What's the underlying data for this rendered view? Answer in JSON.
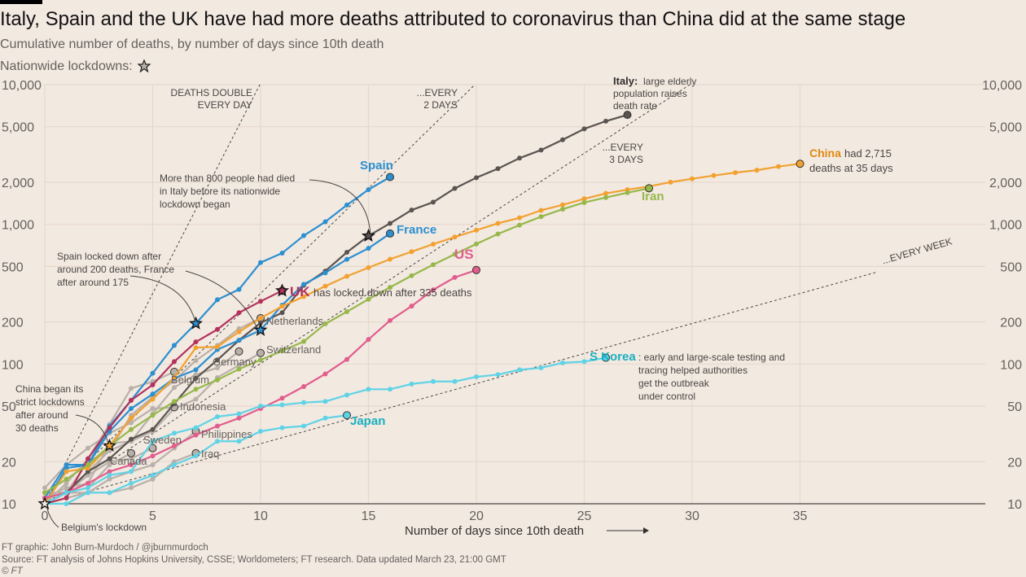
{
  "title": "Italy, Spain and the UK have had more deaths attributed to coronavirus than China did at the same stage",
  "subtitle": "Cumulative number of deaths, by number of days since 10th death",
  "legend_label": "Nationwide lockdowns:",
  "footer": {
    "credit": "FT graphic: John Burn-Murdoch / @jburnmurdoch",
    "source": "Source: FT analysis of Johns Hopkins University, CSSE; Worldometers; FT research. Data updated March 23, 21:00 GMT",
    "copyright": "© FT"
  },
  "chart_data": {
    "type": "line",
    "title": "Italy, Spain and the UK have had more deaths attributed to coronavirus than China did at the same stage",
    "xlabel": "Number of days since 10th death",
    "ylabel": "Cumulative number of deaths",
    "yscale": "log",
    "xlim": [
      0,
      37
    ],
    "ylim": [
      10,
      10000
    ],
    "xticks": [
      0,
      5,
      10,
      15,
      20,
      25,
      30,
      35
    ],
    "yticks": [
      10,
      20,
      50,
      100,
      200,
      500,
      1000,
      2000,
      5000,
      10000
    ],
    "ytick_labels": [
      "10",
      "20",
      "50",
      "100",
      "200",
      "500",
      "1,000",
      "2,000",
      "5,000",
      "10,000"
    ],
    "grid": true,
    "guides": [
      {
        "label": "DEATHS DOUBLE EVERY DAY",
        "doubling_days": 1
      },
      {
        "label": "...EVERY 2 DAYS",
        "doubling_days": 2
      },
      {
        "label": "...EVERY 3 DAYS",
        "doubling_days": 3
      },
      {
        "label": "...EVERY WEEK",
        "doubling_days": 7
      }
    ],
    "series": [
      {
        "name": "Italy",
        "color": "#5a5350",
        "highlight": true,
        "values": [
          10,
          12,
          17,
          21,
          29,
          34,
          52,
          79,
          107,
          148,
          197,
          233,
          366,
          463,
          631,
          827,
          1016,
          1266,
          1441,
          1809,
          2158,
          2503,
          2978,
          3405,
          4032,
          4825,
          5476,
          6077
        ],
        "lockdown_day": 15
      },
      {
        "name": "Spain",
        "color": "#2b8fd0",
        "highlight": true,
        "values": [
          10,
          18,
          19,
          36,
          55,
          86,
          136,
          195,
          289,
          342,
          533,
          623,
          830,
          1043,
          1375,
          1772,
          2182
        ],
        "lockdown_day": 7
      },
      {
        "name": "France",
        "color": "#2b8fd0",
        "highlight": true,
        "values": [
          11,
          19,
          19,
          33,
          48,
          61,
          79,
          91,
          127,
          148,
          175,
          264,
          372,
          450,
          562,
          674,
          860
        ],
        "lockdown_day": 10
      },
      {
        "name": "UK",
        "color": "#b3325c",
        "highlight": true,
        "values": [
          10,
          11,
          21,
          35,
          55,
          71,
          104,
          144,
          177,
          233,
          281,
          335
        ],
        "lockdown_day": 11
      },
      {
        "name": "China",
        "color": "#f2a130",
        "highlight": true,
        "values": [
          10,
          17,
          18,
          26,
          41,
          56,
          80,
          131,
          133,
          170,
          213,
          259,
          304,
          361,
          425,
          490,
          563,
          637,
          722,
          811,
          908,
          1016,
          1113,
          1259,
          1380,
          1523,
          1665,
          1770,
          1868,
          2004,
          2118,
          2236,
          2345,
          2442,
          2592,
          2715
        ],
        "lockdown_day": 3
      },
      {
        "name": "Iran",
        "color": "#96b84a",
        "highlight": true,
        "values": [
          12,
          15,
          19,
          26,
          34,
          43,
          54,
          66,
          77,
          92,
          107,
          124,
          145,
          194,
          237,
          291,
          354,
          429,
          514,
          611,
          724,
          853,
          988,
          1135,
          1284,
          1433,
          1556,
          1685,
          1812
        ]
      },
      {
        "name": "US",
        "color": "#e15d8c",
        "highlight": true,
        "values": [
          11,
          12,
          14,
          17,
          19,
          22,
          26,
          31,
          36,
          41,
          48,
          57,
          69,
          85,
          108,
          150,
          205,
          260,
          340,
          417,
          471
        ]
      },
      {
        "name": "S Korea",
        "color": "#5fd3e6",
        "highlight": true,
        "values": [
          10,
          12,
          13,
          16,
          17,
          28,
          32,
          35,
          42,
          44,
          50,
          51,
          53,
          54,
          60,
          66,
          66,
          72,
          75,
          75,
          81,
          84,
          91,
          94,
          102,
          104,
          111
        ]
      },
      {
        "name": "Japan",
        "color": "#5fd3e6",
        "highlight": true,
        "values": [
          10,
          10,
          12,
          12,
          14,
          16,
          19,
          22,
          28,
          28,
          33,
          35,
          36,
          41,
          43
        ]
      },
      {
        "name": "Netherlands",
        "color": "#b8b0a9",
        "highlight": false,
        "values": [
          10,
          12,
          20,
          24,
          43,
          58,
          76,
          106,
          136,
          179,
          213
        ]
      },
      {
        "name": "Switzerland",
        "color": "#b8b0a9",
        "highlight": false,
        "values": [
          11,
          13,
          14,
          27,
          28,
          33,
          48,
          56,
          80,
          98,
          120
        ]
      },
      {
        "name": "Germany",
        "color": "#b8b0a9",
        "highlight": false,
        "values": [
          12,
          12,
          17,
          24,
          28,
          44,
          68,
          84,
          94,
          123
        ]
      },
      {
        "name": "Belgium",
        "color": "#b8b0a9",
        "highlight": false,
        "values": [
          10,
          14,
          21,
          37,
          67,
          75,
          88
        ],
        "lockdown_day": 0
      },
      {
        "name": "Indonesia",
        "color": "#b8b0a9",
        "highlight": false,
        "values": [
          13,
          19,
          25,
          32,
          38,
          48,
          49
        ]
      },
      {
        "name": "Philippines",
        "color": "#b8b0a9",
        "highlight": false,
        "values": [
          11,
          12,
          12,
          15,
          17,
          19,
          25,
          33
        ]
      },
      {
        "name": "Iraq",
        "color": "#b8b0a9",
        "highlight": false,
        "values": [
          10,
          11,
          12,
          12,
          13,
          15,
          20,
          23
        ]
      },
      {
        "name": "Sweden",
        "color": "#b8b0a9",
        "highlight": false,
        "values": [
          10,
          12,
          16,
          20,
          21,
          25
        ]
      },
      {
        "name": "Canada",
        "color": "#b8b0a9",
        "highlight": false,
        "values": [
          10,
          12,
          13,
          19,
          23
        ]
      }
    ],
    "annotations": [
      {
        "text": "Italy: large elderly population raises death rate",
        "bold": "Italy:"
      },
      {
        "text": "China had 2,715 deaths at 35 days",
        "bold": "China"
      },
      {
        "text": "UK has locked down after 335 deaths",
        "bold": "UK"
      },
      {
        "text": "S Korea: early and large-scale testing and tracing helped authorities get the outbreak under control",
        "bold": "S Korea"
      },
      {
        "text": "More than 800 people had died in Italy before its nationwide lockdown began"
      },
      {
        "text": "Spain locked down after around 200 deaths, France after around 175"
      },
      {
        "text": "China began its strict lockdowns after around 30 deaths"
      },
      {
        "text": "Belgium's lockdown"
      }
    ]
  }
}
